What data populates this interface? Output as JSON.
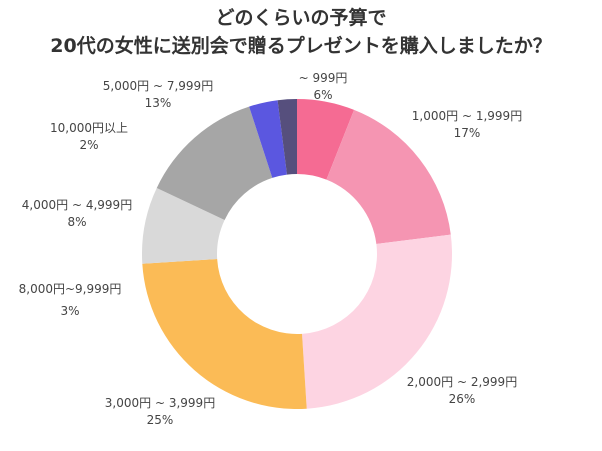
{
  "chart_data": {
    "type": "pie",
    "donut": true,
    "title_lines": [
      "どのくらいの予算で",
      "20代の女性に送別会で贈るプレゼントを購入しましたか？"
    ],
    "slices": [
      {
        "label": "~ 999円",
        "value": 6,
        "value_label": "6%",
        "color": "#f56b93"
      },
      {
        "label": "1,000円 ~ 1,999円",
        "value": 17,
        "value_label": "17%",
        "color": "#f595b2"
      },
      {
        "label": "2,000円 ~ 2,999円",
        "value": 26,
        "value_label": "26%",
        "color": "#fdd4e2"
      },
      {
        "label": "3,000円 ~ 3,999円",
        "value": 25,
        "value_label": "25%",
        "color": "#fbbb56"
      },
      {
        "label": "4,000円 ~ 4,999円",
        "value": 8,
        "value_label": "8%",
        "color": "#d9d9d9"
      },
      {
        "label": "5,000円 ~ 7,999円",
        "value": 13,
        "value_label": "13%",
        "color": "#a6a6a6"
      },
      {
        "label": "8,000円~9,999円",
        "value": 3,
        "value_label": "3%",
        "color": "#5b57e0"
      },
      {
        "label": "10,000円以上",
        "value": 2,
        "value_label": "2%",
        "color": "#564f7d"
      }
    ]
  }
}
